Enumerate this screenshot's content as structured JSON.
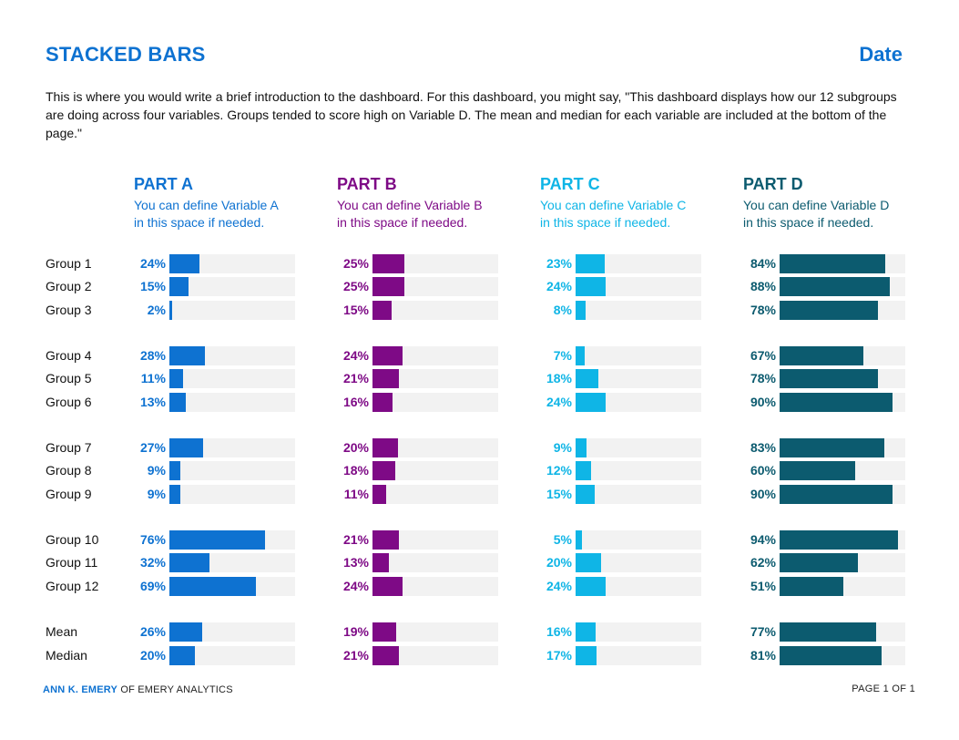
{
  "header": {
    "title": "STACKED BARS",
    "date": "Date"
  },
  "intro": "This is where you would write a brief introduction to the dashboard. For this dashboard, you might say, \"This dashboard displays how our 12 subgroups are doing across four variables. Groups tended to score high on Variable D. The mean and median for each variable are included at the bottom of the page.\"",
  "parts": [
    {
      "title": "PART A",
      "desc_line1": "You can define Variable A",
      "desc_line2": "in this space if needed.",
      "color": "#0E72D1"
    },
    {
      "title": "PART B",
      "desc_line1": "You can define Variable B",
      "desc_line2": "in this space if needed.",
      "color": "#7E0A86"
    },
    {
      "title": "PART C",
      "desc_line1": "You can define Variable C",
      "desc_line2": "in this space if needed.",
      "color": "#0FB5E6"
    },
    {
      "title": "PART D",
      "desc_line1": "You can define Variable D",
      "desc_line2": "in this space if needed.",
      "color": "#0C5B6F"
    }
  ],
  "chart_data": {
    "type": "bar",
    "orientation": "horizontal",
    "categories": [
      "Group 1",
      "Group 2",
      "Group 3",
      "Group 4",
      "Group 5",
      "Group 6",
      "Group 7",
      "Group 8",
      "Group 9",
      "Group 10",
      "Group 11",
      "Group 12",
      "Mean",
      "Median"
    ],
    "series": [
      {
        "name": "PART A",
        "labels": [
          "24%",
          "15%",
          "2%",
          "28%",
          "11%",
          "13%",
          "27%",
          "9%",
          "9%",
          "76%",
          "32%",
          "69%",
          "26%",
          "20%"
        ],
        "values": [
          24,
          15,
          2,
          28,
          11,
          13,
          27,
          9,
          9,
          76,
          32,
          69,
          26,
          20
        ]
      },
      {
        "name": "PART B",
        "labels": [
          "25%",
          "25%",
          "15%",
          "24%",
          "21%",
          "16%",
          "20%",
          "18%",
          "11%",
          "21%",
          "13%",
          "24%",
          "19%",
          "21%"
        ],
        "values": [
          25,
          25,
          15,
          24,
          21,
          16,
          20,
          18,
          11,
          21,
          13,
          24,
          19,
          21
        ]
      },
      {
        "name": "PART C",
        "labels": [
          "23%",
          "24%",
          "8%",
          "7%",
          "18%",
          "24%",
          "9%",
          "12%",
          "15%",
          "5%",
          "20%",
          "24%",
          "16%",
          "17%"
        ],
        "values": [
          23,
          24,
          8,
          7,
          18,
          24,
          9,
          12,
          15,
          5,
          20,
          24,
          16,
          17
        ]
      },
      {
        "name": "PART D",
        "labels": [
          "84%",
          "88%",
          "78%",
          "67%",
          "78%",
          "90%",
          "83%",
          "60%",
          "90%",
          "94%",
          "62%",
          "51%",
          "77%",
          "81%"
        ],
        "values": [
          84,
          88,
          78,
          67,
          78,
          90,
          83,
          60,
          90,
          94,
          62,
          51,
          77,
          81
        ]
      }
    ],
    "xlim": [
      0,
      100
    ]
  },
  "footer": {
    "author": "ANN K. EMERY",
    "org": " OF EMERY ANALYTICS",
    "page": "PAGE 1 OF 1"
  }
}
